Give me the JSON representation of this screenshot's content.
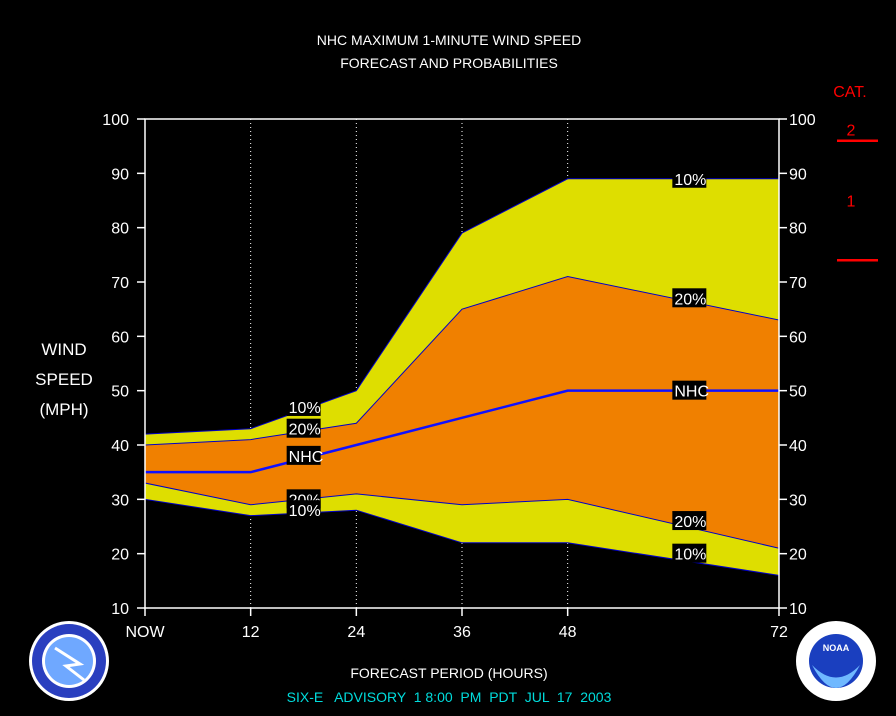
{
  "chart_data": {
    "type": "area",
    "title": "NHC MAXIMUM 1-MINUTE WIND SPEED",
    "subtitle": "FORECAST AND PROBABILITIES",
    "ylabel": [
      "WIND",
      "SPEED",
      "(MPH)"
    ],
    "xlabel": "FORECAST PERIOD (HOURS)",
    "footer": "SIX-E   ADVISORY  1 8:00  PM  PDT  JUL  17  2003",
    "x_ticks": [
      {
        "value": 0,
        "label": "NOW"
      },
      {
        "value": 12,
        "label": "12"
      },
      {
        "value": 24,
        "label": "24"
      },
      {
        "value": 36,
        "label": "36"
      },
      {
        "value": 48,
        "label": "48"
      },
      {
        "value": 72,
        "label": "72"
      }
    ],
    "xlim": [
      0,
      72
    ],
    "ylim": [
      10,
      100
    ],
    "y_ticks": [
      "10",
      "20",
      "30",
      "40",
      "50",
      "60",
      "70",
      "80",
      "90",
      "100"
    ],
    "x": [
      0,
      12,
      24,
      36,
      48,
      72
    ],
    "series": [
      {
        "name": "10%",
        "upper": [
          42,
          43,
          50,
          79,
          89,
          89
        ],
        "lower": [
          30,
          27,
          28,
          22,
          22,
          16
        ],
        "color": "#dede00"
      },
      {
        "name": "20%",
        "upper": [
          40,
          41,
          44,
          65,
          71,
          63
        ],
        "lower": [
          33,
          29,
          31,
          29,
          30,
          21
        ],
        "color": "#f08000"
      },
      {
        "name": "NHC",
        "values": [
          35,
          35,
          40,
          45,
          50,
          50
        ],
        "color": "#1010ff"
      }
    ],
    "labels": [
      {
        "text": "10%",
        "x": 16.2,
        "y": 47
      },
      {
        "text": "20%",
        "x": 16.2,
        "y": 43
      },
      {
        "text": "NHC",
        "x": 16.2,
        "y": 38
      },
      {
        "text": "20%",
        "x": 16.2,
        "y": 30
      },
      {
        "text": "10%",
        "x": 16.2,
        "y": 28
      },
      {
        "text": "10%",
        "x": 60,
        "y": 89
      },
      {
        "text": "20%",
        "x": 60,
        "y": 67
      },
      {
        "text": "NHC",
        "x": 60,
        "y": 50
      },
      {
        "text": "20%",
        "x": 60,
        "y": 26
      },
      {
        "text": "10%",
        "x": 60,
        "y": 20
      }
    ],
    "category_label": "CAT.",
    "categories": [
      {
        "label": "2",
        "threshold": 96
      },
      {
        "label": "1",
        "threshold": 74
      }
    ]
  }
}
